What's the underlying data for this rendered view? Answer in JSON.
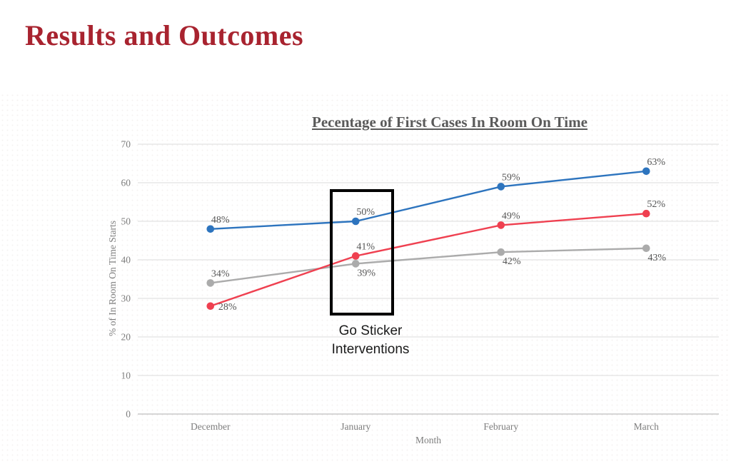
{
  "slide": {
    "title": "Results and Outcomes",
    "title_color": "#A8232F"
  },
  "chart_data": {
    "type": "line",
    "title": "Pecentage of First Cases In Room On Time",
    "xlabel": "Month",
    "ylabel": "% of In Room On Time Starts",
    "categories": [
      "December",
      "January",
      "February",
      "March"
    ],
    "ylim": [
      0,
      70
    ],
    "yticks": [
      0,
      10,
      20,
      30,
      40,
      50,
      60,
      70
    ],
    "grid": true,
    "legend": "none",
    "series": [
      {
        "name": "blue-series",
        "color": "#2D74BE",
        "values": [
          48,
          50,
          59,
          63
        ],
        "labels": [
          "48%",
          "50%",
          "59%",
          "63%"
        ],
        "label_pos": [
          "above",
          "above",
          "above",
          "above"
        ]
      },
      {
        "name": "gray-series",
        "color": "#ABABAB",
        "values": [
          34,
          39,
          42,
          43
        ],
        "labels": [
          "34%",
          "39%",
          "42%",
          "43%"
        ],
        "label_pos": [
          "above",
          "below",
          "below",
          "below"
        ]
      },
      {
        "name": "red-series",
        "color": "#EF4050",
        "values": [
          28,
          41,
          49,
          52
        ],
        "labels": [
          "28%",
          "41%",
          "49%",
          "52%"
        ],
        "label_pos": [
          "right",
          "above",
          "above",
          "above"
        ]
      }
    ]
  },
  "annotation": {
    "label_line1": "Go Sticker",
    "label_line2": "Interventions"
  }
}
